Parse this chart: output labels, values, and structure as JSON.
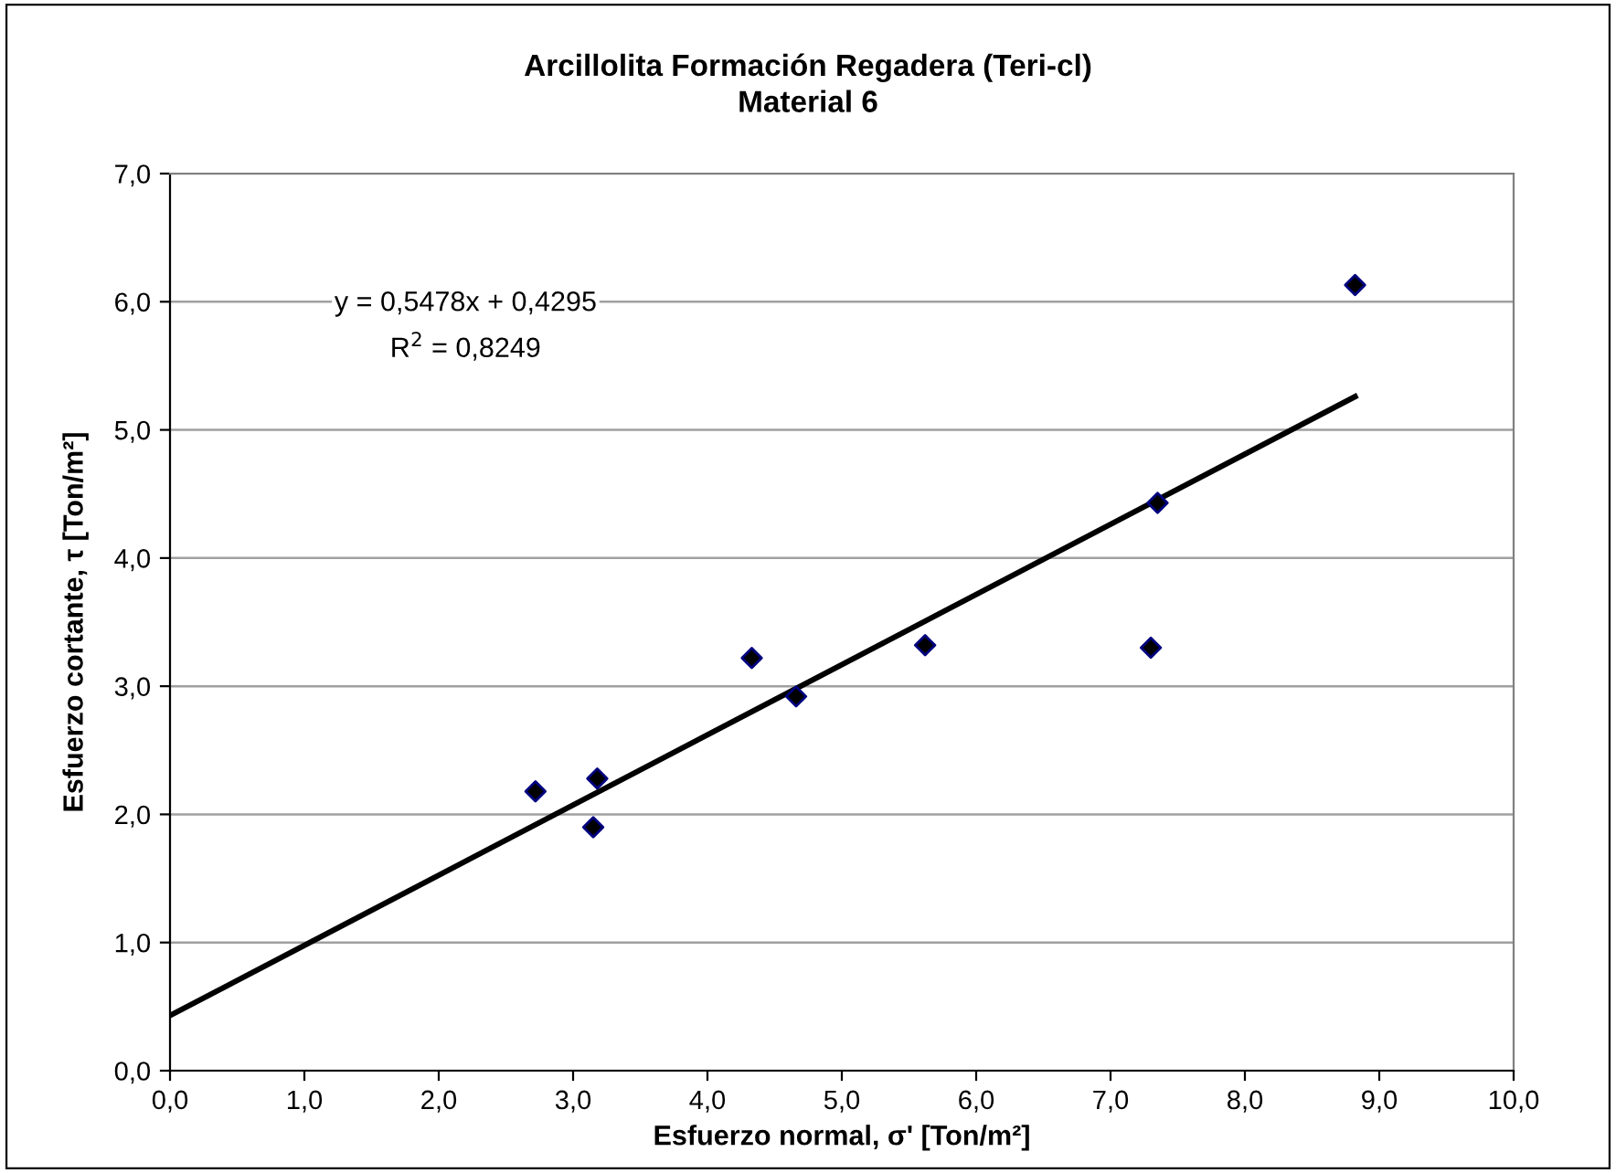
{
  "chart_data": {
    "type": "scatter",
    "title": "Arcillolita Formación Regadera (Teri-cl)\nMaterial 6",
    "xlabel": "Esfuerzo normal, σ' [Ton/m²]",
    "ylabel": "Esfuerzo cortante, τ [Ton/m²]",
    "series": [
      {
        "color": "#000080",
        "marker": "diamond",
        "x": [
          2.72,
          3.15,
          3.18,
          4.33,
          4.66,
          5.62,
          7.3,
          7.35,
          8.82
        ],
        "values": [
          2.18,
          1.9,
          2.28,
          3.22,
          2.92,
          3.32,
          3.3,
          4.43,
          6.13
        ]
      },
      {
        "type": "line",
        "color": "#000000",
        "marker": "none",
        "line_style": "solid",
        "x": [
          0.0,
          8.82
        ],
        "values": [
          0.43,
          5.26
        ]
      }
    ],
    "annotations": [
      "y = 0,5478x + 0,4295",
      "R$^{2}$ = 0,8249"
    ],
    "xlim": [
      0,
      10
    ],
    "ylim": [
      0,
      7
    ],
    "xticks": [
      {
        "value": 0,
        "label": "0,0"
      },
      {
        "value": 1,
        "label": "1,0"
      },
      {
        "value": 2,
        "label": "2,0"
      },
      {
        "value": 3,
        "label": "3,0"
      },
      {
        "value": 4,
        "label": "4,0"
      },
      {
        "value": 5,
        "label": "5,0"
      },
      {
        "value": 6,
        "label": "6,0"
      },
      {
        "value": 7,
        "label": "7,0"
      },
      {
        "value": 8,
        "label": "8,0"
      },
      {
        "value": 9,
        "label": "9,0"
      },
      {
        "value": 10,
        "label": "10,0"
      }
    ],
    "yticks": [
      {
        "value": 0,
        "label": "0,0"
      },
      {
        "value": 1,
        "label": "1,0"
      },
      {
        "value": 2,
        "label": "2,0"
      },
      {
        "value": 3,
        "label": "3,0"
      },
      {
        "value": 4,
        "label": "4,0"
      },
      {
        "value": 5,
        "label": "5,0"
      },
      {
        "value": 6,
        "label": "6,0"
      },
      {
        "value": 7,
        "label": "7,0"
      }
    ],
    "grid": "y",
    "legend": false
  }
}
